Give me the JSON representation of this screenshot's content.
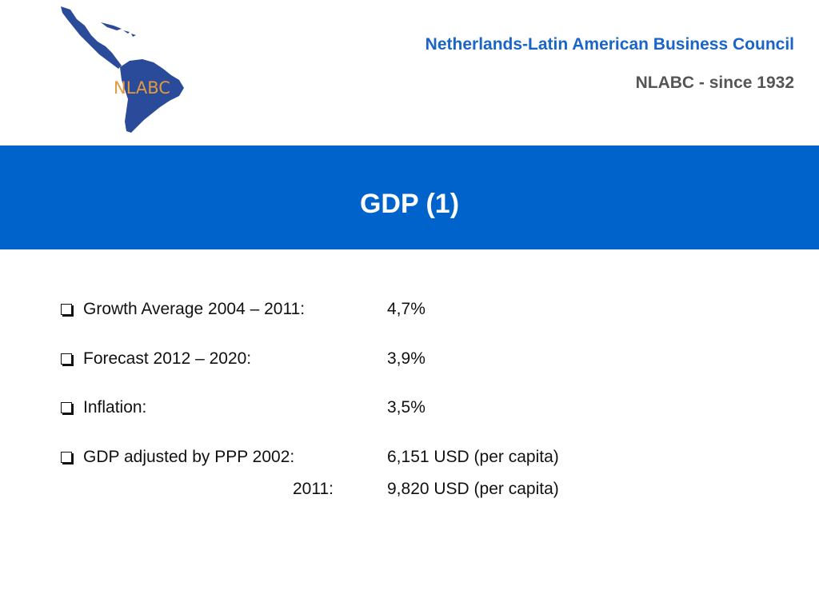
{
  "header": {
    "logo_text": "NLABC",
    "org_name": "Netherlands-Latin American Business Council",
    "org_since": "NLABC - since 1932"
  },
  "slide": {
    "title": "GDP (1)"
  },
  "items": [
    {
      "label": "Growth Average 2004 – 2011:",
      "value": "4,7%"
    },
    {
      "label": "Forecast 2012 – 2020:",
      "value": "3,9%"
    },
    {
      "label": "Inflation:",
      "value": "3,5%"
    },
    {
      "label": "GDP adjusted by PPP 2002:",
      "value": "6,151 USD (per capita)"
    }
  ],
  "sub_item": {
    "label": "2011:",
    "value": "9,820 USD (per capita)"
  },
  "colors": {
    "banner": "#0063cc",
    "org_name": "#1a65c8",
    "logo_map": "#2a4a9a",
    "logo_text": "#e39a3c"
  }
}
